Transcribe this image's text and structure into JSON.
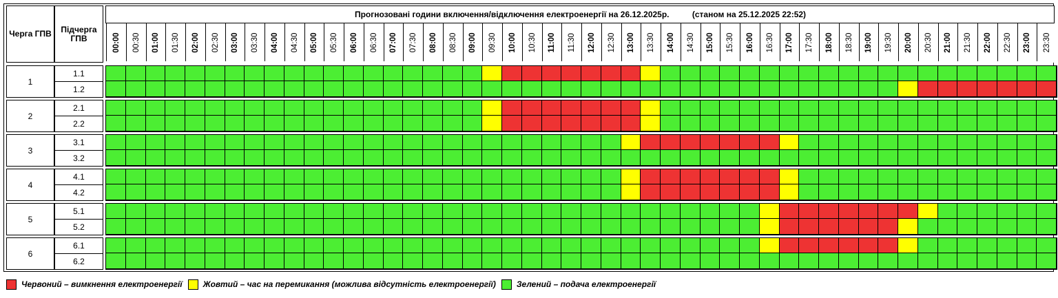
{
  "title": "Прогнозовані години включення/відключення електроенергії на 26.12.2025р.          (станом на 25.12.2025 22:52)",
  "header": {
    "queue_label": "Черга ГПВ",
    "subqueue_label": "Підчерга ГПВ"
  },
  "times": [
    "00:00",
    "00:30",
    "01:00",
    "01:30",
    "02:00",
    "02:30",
    "03:00",
    "03:30",
    "04:00",
    "04:30",
    "05:00",
    "05:30",
    "06:00",
    "06:30",
    "07:00",
    "07:30",
    "08:00",
    "08:30",
    "09:00",
    "09:30",
    "10:00",
    "10:30",
    "11:00",
    "11:30",
    "12:00",
    "12:30",
    "13:00",
    "13:30",
    "14:00",
    "14:30",
    "15:00",
    "15:30",
    "16:00",
    "16:30",
    "17:00",
    "17:30",
    "18:00",
    "18:30",
    "19:00",
    "19:30",
    "20:00",
    "20:30",
    "21:00",
    "21:30",
    "22:00",
    "22:30",
    "23:00",
    "23:30"
  ],
  "colors": {
    "R": "#ee3333",
    "Y": "#ffff00",
    "G": "#4cee33"
  },
  "groups": [
    {
      "queue": "1",
      "rows": [
        {
          "sub": "1.1",
          "slots": "GGGGGGGGGGGGGGGGGGGYRRRRRRRYGGGGGGGGGGGGGGGGGGGG"
        },
        {
          "sub": "1.2",
          "slots": "GGGGGGGGGGGGGGGGGGGGGGGGGGGGGGGGGGGGGGGGYRRRRRRR"
        }
      ]
    },
    {
      "queue": "2",
      "rows": [
        {
          "sub": "2.1",
          "slots": "GGGGGGGGGGGGGGGGGGGYRRRRRRRYGGGGGGGGGGGGGGGGGGGG"
        },
        {
          "sub": "2.2",
          "slots": "GGGGGGGGGGGGGGGGGGGYRRRRRRRYGGGGGGGGGGGGGGGGGGGG"
        }
      ]
    },
    {
      "queue": "3",
      "rows": [
        {
          "sub": "3.1",
          "slots": "GGGGGGGGGGGGGGGGGGGGGGGGGGYRRRRRRRYGGGGGGGGGGGGG"
        },
        {
          "sub": "3.2",
          "slots": "GGGGGGGGGGGGGGGGGGGGGGGGGGGGGGGGGGGGGGGGGGGGGGGG"
        }
      ]
    },
    {
      "queue": "4",
      "rows": [
        {
          "sub": "4.1",
          "slots": "GGGGGGGGGGGGGGGGGGGGGGGGGGYRRRRRRRYGGGGGGGGGGGGG"
        },
        {
          "sub": "4.2",
          "slots": "GGGGGGGGGGGGGGGGGGGGGGGGGGYRRRRRRRYGGGGGGGGGGGGG"
        }
      ]
    },
    {
      "queue": "5",
      "rows": [
        {
          "sub": "5.1",
          "slots": "GGGGGGGGGGGGGGGGGGGGGGGGGGGGGGGGGYRRRRRRRYGGGGGG"
        },
        {
          "sub": "5.2",
          "slots": "GGGGGGGGGGGGGGGGGGGGGGGGGGGGGGGGGYRRRRRRYGGGGGGG"
        }
      ]
    },
    {
      "queue": "6",
      "rows": [
        {
          "sub": "6.1",
          "slots": "GGGGGGGGGGGGGGGGGGGGGGGGGGGGGGGGGYRRRRRRYGGGGGGG"
        },
        {
          "sub": "6.2",
          "slots": "GGGGGGGGGGGGGGGGGGGGGGGGGGGGGGGGGGGGGGGGGGGGGGGG"
        }
      ]
    }
  ],
  "legend": [
    {
      "code": "R",
      "text": "Червоний – вимкнення електроенергії"
    },
    {
      "code": "Y",
      "text": "Жовтий – час на перемикання (можлива відсутність електроенергії)"
    },
    {
      "code": "G",
      "text": "Зелений – подача електроенергії"
    }
  ]
}
